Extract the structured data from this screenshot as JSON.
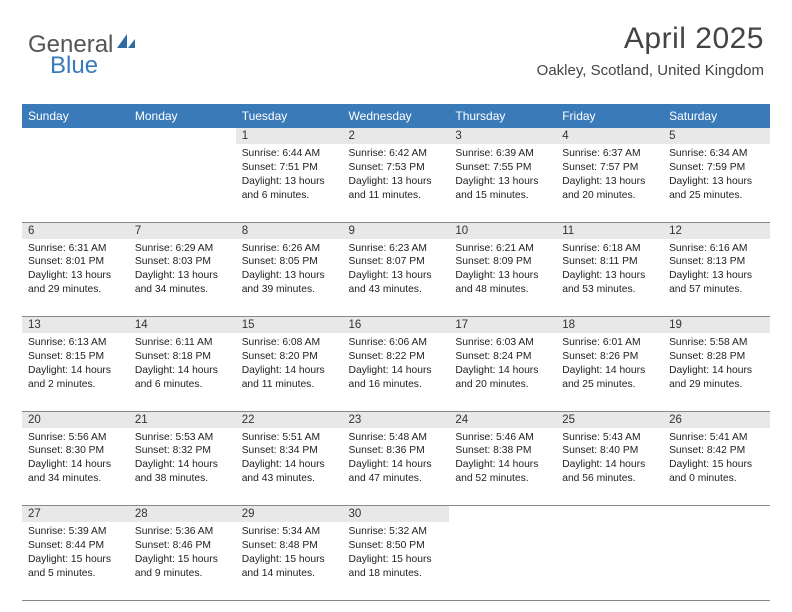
{
  "logo": {
    "part1": "General",
    "part2": "Blue"
  },
  "header": {
    "title": "April 2025",
    "subtitle": "Oakley, Scotland, United Kingdom"
  },
  "colors": {
    "header_bg": "#3a7ab8",
    "daynum_bg": "#e8e8e8",
    "border": "#888888",
    "text": "#222222"
  },
  "day_labels": [
    "Sunday",
    "Monday",
    "Tuesday",
    "Wednesday",
    "Thursday",
    "Friday",
    "Saturday"
  ],
  "weeks": [
    [
      null,
      null,
      {
        "n": "1",
        "sr": "Sunrise: 6:44 AM",
        "ss": "Sunset: 7:51 PM",
        "dl": "Daylight: 13 hours and 6 minutes."
      },
      {
        "n": "2",
        "sr": "Sunrise: 6:42 AM",
        "ss": "Sunset: 7:53 PM",
        "dl": "Daylight: 13 hours and 11 minutes."
      },
      {
        "n": "3",
        "sr": "Sunrise: 6:39 AM",
        "ss": "Sunset: 7:55 PM",
        "dl": "Daylight: 13 hours and 15 minutes."
      },
      {
        "n": "4",
        "sr": "Sunrise: 6:37 AM",
        "ss": "Sunset: 7:57 PM",
        "dl": "Daylight: 13 hours and 20 minutes."
      },
      {
        "n": "5",
        "sr": "Sunrise: 6:34 AM",
        "ss": "Sunset: 7:59 PM",
        "dl": "Daylight: 13 hours and 25 minutes."
      }
    ],
    [
      {
        "n": "6",
        "sr": "Sunrise: 6:31 AM",
        "ss": "Sunset: 8:01 PM",
        "dl": "Daylight: 13 hours and 29 minutes."
      },
      {
        "n": "7",
        "sr": "Sunrise: 6:29 AM",
        "ss": "Sunset: 8:03 PM",
        "dl": "Daylight: 13 hours and 34 minutes."
      },
      {
        "n": "8",
        "sr": "Sunrise: 6:26 AM",
        "ss": "Sunset: 8:05 PM",
        "dl": "Daylight: 13 hours and 39 minutes."
      },
      {
        "n": "9",
        "sr": "Sunrise: 6:23 AM",
        "ss": "Sunset: 8:07 PM",
        "dl": "Daylight: 13 hours and 43 minutes."
      },
      {
        "n": "10",
        "sr": "Sunrise: 6:21 AM",
        "ss": "Sunset: 8:09 PM",
        "dl": "Daylight: 13 hours and 48 minutes."
      },
      {
        "n": "11",
        "sr": "Sunrise: 6:18 AM",
        "ss": "Sunset: 8:11 PM",
        "dl": "Daylight: 13 hours and 53 minutes."
      },
      {
        "n": "12",
        "sr": "Sunrise: 6:16 AM",
        "ss": "Sunset: 8:13 PM",
        "dl": "Daylight: 13 hours and 57 minutes."
      }
    ],
    [
      {
        "n": "13",
        "sr": "Sunrise: 6:13 AM",
        "ss": "Sunset: 8:15 PM",
        "dl": "Daylight: 14 hours and 2 minutes."
      },
      {
        "n": "14",
        "sr": "Sunrise: 6:11 AM",
        "ss": "Sunset: 8:18 PM",
        "dl": "Daylight: 14 hours and 6 minutes."
      },
      {
        "n": "15",
        "sr": "Sunrise: 6:08 AM",
        "ss": "Sunset: 8:20 PM",
        "dl": "Daylight: 14 hours and 11 minutes."
      },
      {
        "n": "16",
        "sr": "Sunrise: 6:06 AM",
        "ss": "Sunset: 8:22 PM",
        "dl": "Daylight: 14 hours and 16 minutes."
      },
      {
        "n": "17",
        "sr": "Sunrise: 6:03 AM",
        "ss": "Sunset: 8:24 PM",
        "dl": "Daylight: 14 hours and 20 minutes."
      },
      {
        "n": "18",
        "sr": "Sunrise: 6:01 AM",
        "ss": "Sunset: 8:26 PM",
        "dl": "Daylight: 14 hours and 25 minutes."
      },
      {
        "n": "19",
        "sr": "Sunrise: 5:58 AM",
        "ss": "Sunset: 8:28 PM",
        "dl": "Daylight: 14 hours and 29 minutes."
      }
    ],
    [
      {
        "n": "20",
        "sr": "Sunrise: 5:56 AM",
        "ss": "Sunset: 8:30 PM",
        "dl": "Daylight: 14 hours and 34 minutes."
      },
      {
        "n": "21",
        "sr": "Sunrise: 5:53 AM",
        "ss": "Sunset: 8:32 PM",
        "dl": "Daylight: 14 hours and 38 minutes."
      },
      {
        "n": "22",
        "sr": "Sunrise: 5:51 AM",
        "ss": "Sunset: 8:34 PM",
        "dl": "Daylight: 14 hours and 43 minutes."
      },
      {
        "n": "23",
        "sr": "Sunrise: 5:48 AM",
        "ss": "Sunset: 8:36 PM",
        "dl": "Daylight: 14 hours and 47 minutes."
      },
      {
        "n": "24",
        "sr": "Sunrise: 5:46 AM",
        "ss": "Sunset: 8:38 PM",
        "dl": "Daylight: 14 hours and 52 minutes."
      },
      {
        "n": "25",
        "sr": "Sunrise: 5:43 AM",
        "ss": "Sunset: 8:40 PM",
        "dl": "Daylight: 14 hours and 56 minutes."
      },
      {
        "n": "26",
        "sr": "Sunrise: 5:41 AM",
        "ss": "Sunset: 8:42 PM",
        "dl": "Daylight: 15 hours and 0 minutes."
      }
    ],
    [
      {
        "n": "27",
        "sr": "Sunrise: 5:39 AM",
        "ss": "Sunset: 8:44 PM",
        "dl": "Daylight: 15 hours and 5 minutes."
      },
      {
        "n": "28",
        "sr": "Sunrise: 5:36 AM",
        "ss": "Sunset: 8:46 PM",
        "dl": "Daylight: 15 hours and 9 minutes."
      },
      {
        "n": "29",
        "sr": "Sunrise: 5:34 AM",
        "ss": "Sunset: 8:48 PM",
        "dl": "Daylight: 15 hours and 14 minutes."
      },
      {
        "n": "30",
        "sr": "Sunrise: 5:32 AM",
        "ss": "Sunset: 8:50 PM",
        "dl": "Daylight: 15 hours and 18 minutes."
      },
      null,
      null,
      null
    ]
  ]
}
